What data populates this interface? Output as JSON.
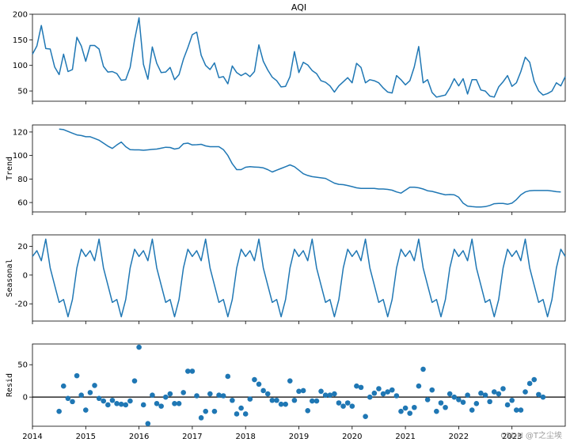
{
  "chart_data": [
    {
      "type": "line",
      "title": "AQI",
      "ylabel": "",
      "xlabel": "",
      "ylim": [
        30,
        200
      ],
      "yticks": [
        50,
        100,
        150,
        200
      ],
      "x_start": "2014-01",
      "x_tick_labels": [
        "2014",
        "2015",
        "2016",
        "2017",
        "2018",
        "2019",
        "2020",
        "2021",
        "2022",
        "2023"
      ],
      "series": [
        {
          "values": [
            122,
            138,
            178,
            133,
            132,
            97,
            82,
            122,
            88,
            92,
            155,
            138,
            108,
            139,
            139,
            132,
            98,
            87,
            88,
            84,
            71,
            72,
            96,
            150,
            193,
            102,
            73,
            136,
            104,
            86,
            87,
            96,
            72,
            82,
            112,
            135,
            160,
            165,
            120,
            100,
            92,
            105,
            76,
            78,
            64,
            99,
            86,
            80,
            85,
            78,
            88,
            140,
            108,
            91,
            77,
            70,
            58,
            59,
            78,
            127,
            86,
            106,
            101,
            90,
            84,
            70,
            67,
            60,
            48,
            60,
            68,
            76,
            66,
            104,
            96,
            66,
            72,
            70,
            66,
            56,
            48,
            46,
            80,
            72,
            62,
            70,
            97,
            137,
            66,
            72,
            47,
            38,
            40,
            42,
            56,
            74,
            60,
            74,
            44,
            72,
            72,
            52,
            50,
            40,
            38,
            58,
            68,
            80,
            59,
            66,
            88,
            116,
            106,
            69,
            50,
            42,
            45,
            50,
            66,
            60,
            78
          ]
        }
      ]
    },
    {
      "type": "line",
      "title": "",
      "ylabel": "Trend",
      "ylim": [
        52,
        126
      ],
      "yticks": [
        60,
        80,
        100,
        120
      ],
      "series": [
        {
          "start_index": 6,
          "values": [
            122.5,
            122,
            120.5,
            119,
            117.5,
            117,
            116,
            116,
            114.5,
            113,
            110.5,
            108,
            106,
            109,
            111.5,
            107.5,
            105,
            104.8,
            104.8,
            104.5,
            104.8,
            105.2,
            105.5,
            106.2,
            107,
            106.8,
            105.5,
            106.2,
            110,
            110.5,
            109,
            109.2,
            109.5,
            108.2,
            107.5,
            107.5,
            107.5,
            105,
            100,
            93,
            88,
            88,
            90,
            90.5,
            90.2,
            90,
            89.5,
            88,
            86,
            87.5,
            89,
            90.5,
            92,
            90.5,
            87.5,
            84.5,
            83,
            82,
            81.5,
            81,
            80.5,
            78.5,
            76.5,
            75.5,
            75.2,
            74.5,
            73.5,
            72.5,
            72,
            72,
            72,
            72,
            71.5,
            71.5,
            71.2,
            70.5,
            69,
            68,
            70.5,
            73,
            73,
            72.5,
            71.5,
            70,
            69.5,
            68.5,
            67.5,
            66.5,
            66.8,
            66.5,
            64.5,
            59.5,
            57,
            56.5,
            56.2,
            56.2,
            56.5,
            57.5,
            59,
            59.2,
            59.2,
            58.5,
            59.5,
            62.5,
            66.5,
            69,
            70,
            70.2,
            70.2,
            70.2,
            70.2,
            69.8,
            69.2,
            69
          ]
        }
      ]
    },
    {
      "type": "line",
      "title": "",
      "ylabel": "Seasonal",
      "ylim": [
        -32,
        28
      ],
      "yticks": [
        -20,
        0,
        20
      ],
      "series": [
        {
          "pattern_12": [
            13,
            17,
            10,
            25,
            5,
            -7,
            -19,
            -17,
            -29,
            -17,
            5,
            18
          ]
        }
      ]
    },
    {
      "type": "scatter",
      "title": "",
      "ylabel": "Resid",
      "ylim": [
        -45,
        82
      ],
      "yticks": [
        -50,
        0,
        50
      ],
      "zero_line": true,
      "series": [
        {
          "start_index": 6,
          "values": [
            -22,
            17,
            -2,
            -7,
            33,
            3,
            -20,
            7,
            18,
            -2,
            -6,
            -12,
            -5,
            -10,
            -11,
            -12,
            -6,
            25,
            77,
            -12,
            -41,
            3,
            -10,
            -14,
            0,
            5,
            -10,
            -10,
            7,
            40,
            40,
            2,
            -32,
            -22,
            5,
            -22,
            3,
            2,
            32,
            -5,
            -26,
            -17,
            -26,
            -3,
            27,
            20,
            10,
            5,
            -5,
            -5,
            -11,
            -11,
            25,
            -5,
            9,
            10,
            -21,
            -6,
            -6,
            9,
            3,
            3,
            5,
            -9,
            -14,
            -9,
            -14,
            17,
            15,
            -30,
            0,
            6,
            13,
            5,
            8,
            11,
            2,
            -22,
            -17,
            -25,
            -16,
            17,
            43,
            -4,
            11,
            -22,
            -9,
            -16,
            5,
            0,
            -4,
            -8,
            3,
            -20,
            -10,
            6,
            3,
            -7,
            8,
            5,
            13,
            -12,
            -5,
            -20,
            -20,
            8,
            21,
            27,
            4,
            0
          ]
        }
      ]
    }
  ],
  "watermark": "CSDN @T之尘埃"
}
